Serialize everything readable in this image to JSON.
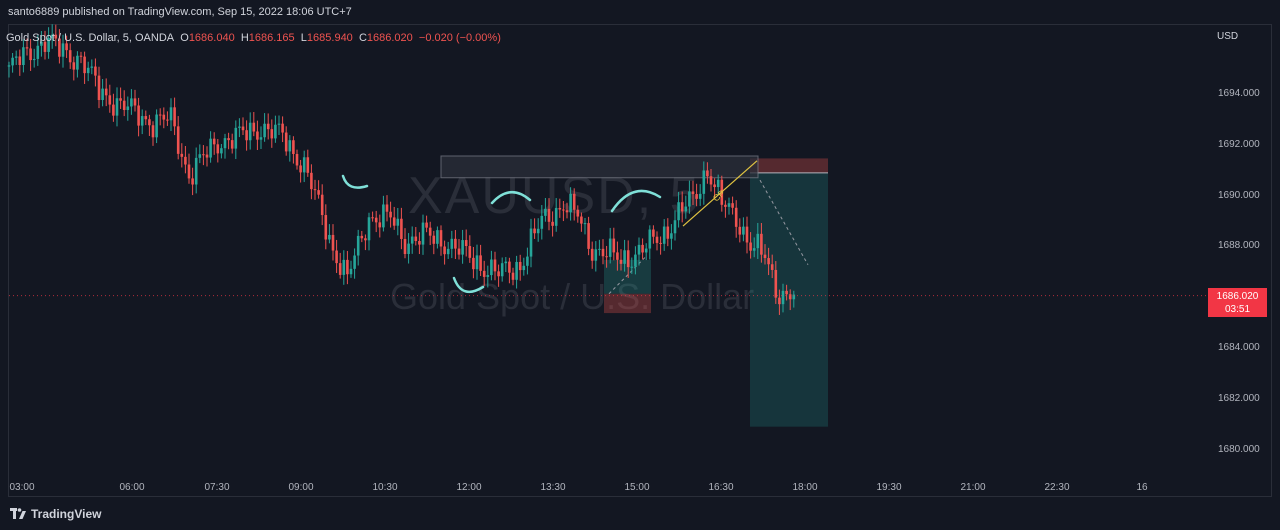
{
  "header": {
    "published": "santo6889 published on TradingView.com, Sep 15, 2022 18:06 UTC+7"
  },
  "symbol": {
    "name": "Gold Spot / U.S. Dollar, 5, OANDA",
    "open_label": "O",
    "open": "1686.040",
    "high_label": "H",
    "high": "1686.165",
    "low_label": "L",
    "low": "1685.940",
    "close_label": "C",
    "close": "1686.020",
    "change": "−0.020 (−0.00%)"
  },
  "currency": "USD",
  "watermark": {
    "ticker": "XAUUSD, 5",
    "name": "Gold Spot / U.S. Dollar"
  },
  "last_price": {
    "value": "1686.020",
    "countdown": "03:51"
  },
  "drawing_label": "CP",
  "footer": {
    "brand": "TradingView"
  },
  "colors": {
    "up": "#26a69a",
    "down": "#ef5350",
    "bg": "#131722",
    "accent": "#f23645"
  },
  "chart_data": {
    "type": "candlestick",
    "y_ticks": [
      "1694.000",
      "1692.000",
      "1690.000",
      "1688.000",
      "1686.000",
      "1684.000",
      "1682.000",
      "1680.000"
    ],
    "x_ticks": [
      "03:00",
      "06:00",
      "07:30",
      "09:00",
      "10:30",
      "12:00",
      "13:30",
      "15:00",
      "16:30",
      "18:00",
      "19:30",
      "21:00",
      "22:30",
      "16"
    ],
    "ylim": [
      1678.6,
      1696.6
    ],
    "close_path": [
      [
        0,
        1695.4
      ],
      [
        10,
        1696.6
      ],
      [
        14,
        1696.2
      ],
      [
        20,
        1695.8
      ],
      [
        25,
        1694.5
      ],
      [
        31,
        1693.9
      ],
      [
        40,
        1693.2
      ],
      [
        45,
        1693.3
      ],
      [
        50,
        1691.0
      ],
      [
        58,
        1692.4
      ],
      [
        64,
        1692.6
      ],
      [
        70,
        1693.0
      ],
      [
        76,
        1692.6
      ],
      [
        82,
        1691.4
      ],
      [
        86,
        1689.7
      ],
      [
        90,
        1688.0
      ],
      [
        94,
        1686.7
      ],
      [
        100,
        1689.3
      ],
      [
        106,
        1689.2
      ],
      [
        110,
        1688.3
      ],
      [
        116,
        1688.5
      ],
      [
        122,
        1688.2
      ],
      [
        130,
        1687.4
      ],
      [
        136,
        1686.9
      ],
      [
        142,
        1687.3
      ],
      [
        148,
        1689.1
      ],
      [
        154,
        1689.8
      ],
      [
        158,
        1689.3
      ],
      [
        162,
        1688.0
      ],
      [
        170,
        1687.5
      ],
      [
        176,
        1687.9
      ],
      [
        182,
        1688.6
      ],
      [
        186,
        1689.4
      ],
      [
        190,
        1690.0
      ],
      [
        194,
        1691.3
      ],
      [
        198,
        1689.8
      ],
      [
        202,
        1689.3
      ],
      [
        206,
        1688.1
      ],
      [
        210,
        1687.6
      ],
      [
        214,
        1686.1
      ],
      [
        218,
        1686.0
      ]
    ]
  }
}
